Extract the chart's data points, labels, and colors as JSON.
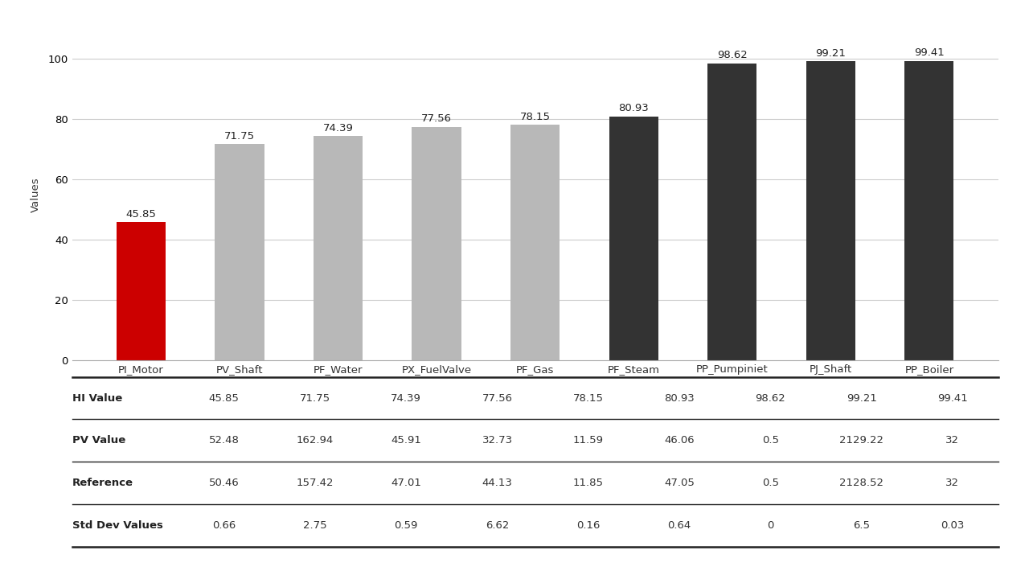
{
  "categories": [
    "PI_Motor",
    "PV_Shaft",
    "PF_Water",
    "PX_FuelValve",
    "PF_Gas",
    "PF_Steam",
    "PP_Pumpiniet",
    "PJ_Shaft",
    "PP_Boiler"
  ],
  "hi_values": [
    45.85,
    71.75,
    74.39,
    77.56,
    78.15,
    80.93,
    98.62,
    99.21,
    99.41
  ],
  "bar_colors": [
    "#cc0000",
    "#b8b8b8",
    "#b8b8b8",
    "#b8b8b8",
    "#b8b8b8",
    "#333333",
    "#333333",
    "#333333",
    "#333333"
  ],
  "pv_values": [
    "52.48",
    "162.94",
    "45.91",
    "32.73",
    "11.59",
    "46.06",
    "0.5",
    "2129.22",
    "32"
  ],
  "ref_values": [
    "50.46",
    "157.42",
    "47.01",
    "44.13",
    "11.85",
    "47.05",
    "0.5",
    "2128.52",
    "32"
  ],
  "std_values": [
    "0.66",
    "2.75",
    "0.59",
    "6.62",
    "0.16",
    "0.64",
    "0",
    "6.5",
    "0.03"
  ],
  "ylabel": "Values",
  "ylim": [
    0,
    110
  ],
  "yticks": [
    0,
    20,
    40,
    60,
    80,
    100
  ],
  "table_row_labels": [
    "HI Value",
    "PV Value",
    "Reference",
    "Std Dev Values"
  ],
  "background_color": "#ffffff",
  "bar_width": 0.5,
  "label_fontsize": 9.5,
  "axis_fontsize": 9.5,
  "table_fontsize": 9.5
}
